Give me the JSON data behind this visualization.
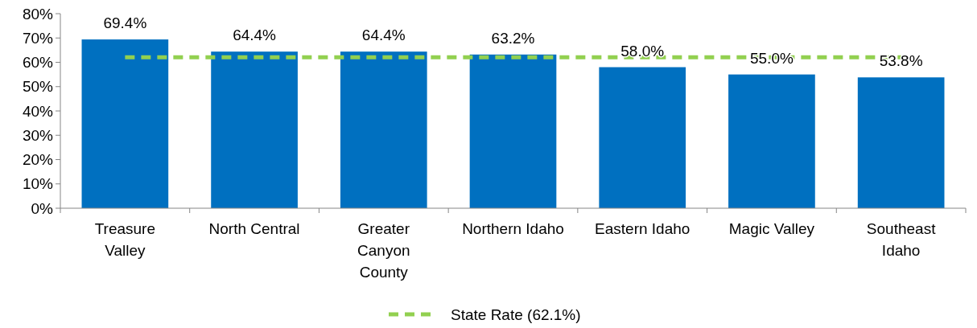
{
  "chart_data": {
    "type": "bar",
    "categories": [
      "Treasure\nValley",
      "North Central",
      "Greater\nCanyon\nCounty",
      "Northern Idaho",
      "Eastern Idaho",
      "Magic Valley",
      "Southeast\nIdaho"
    ],
    "series": [
      {
        "color": "#0070c0",
        "values": [
          69.4,
          64.4,
          64.4,
          63.2,
          58.0,
          55.0,
          53.8
        ],
        "value_labels": [
          "69.4%",
          "64.4%",
          "64.4%",
          "63.2%",
          "58.0%",
          "55.0%",
          "53.8%"
        ]
      },
      {
        "type": "line",
        "name": "State Rate (62.1%)",
        "color": "#92d050",
        "line_style": "dashed",
        "marker": "none",
        "values": [
          62.1,
          62.1,
          62.1,
          62.1,
          62.1,
          62.1,
          62.1
        ]
      }
    ],
    "ylim": [
      0,
      80
    ],
    "yticks": [
      {
        "value": 0,
        "label": "0%"
      },
      {
        "value": 10,
        "label": "10%"
      },
      {
        "value": 20,
        "label": "20%"
      },
      {
        "value": 30,
        "label": "30%"
      },
      {
        "value": 40,
        "label": "40%"
      },
      {
        "value": 50,
        "label": "50%"
      },
      {
        "value": 60,
        "label": "60%"
      },
      {
        "value": 70,
        "label": "70%"
      },
      {
        "value": 80,
        "label": "80%"
      }
    ],
    "grid": false,
    "legend": "bottom"
  }
}
